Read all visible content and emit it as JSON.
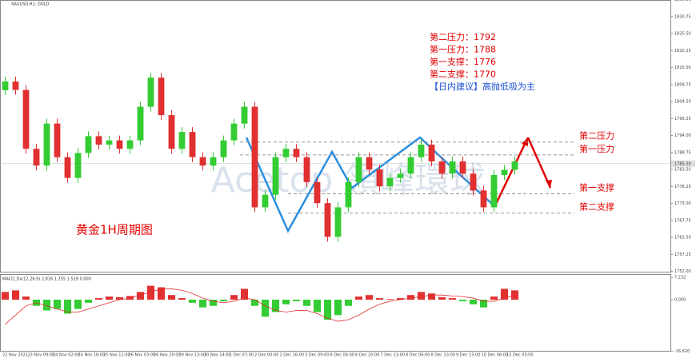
{
  "chart_data": {
    "type": "candlestick",
    "title": "XAUUSD,H1: GOLD",
    "subtitle": "黄金1H周期图",
    "watermark": "Acetop 領峰環球",
    "annotations": [
      "第二压力：1792",
      "第一压力：1788",
      "第一支撑：1776",
      "第二支撑：1770",
      "【日内建议】高抛低吸为主"
    ],
    "levels": [
      {
        "name": "第二压力",
        "value": 1792
      },
      {
        "name": "第一压力",
        "value": 1788
      },
      {
        "name": "第一支撑",
        "value": 1776
      },
      {
        "name": "第二支撑",
        "value": 1770
      }
    ],
    "last_price": {
      "value": 1785.3,
      "label": "1785.30"
    },
    "ylim": [
      1751.9,
      1835.9
    ],
    "yticks": [
      {
        "value": 1836,
        "label": "1836.00"
      },
      {
        "value": 1830.75,
        "label": "1830.75"
      },
      {
        "value": 1825.5,
        "label": "1825.50"
      },
      {
        "value": 1820.25,
        "label": "1820.25"
      },
      {
        "value": 1815,
        "label": "1815.00"
      },
      {
        "value": 1809.75,
        "label": "1809.75"
      },
      {
        "value": 1804.5,
        "label": "1804.50"
      },
      {
        "value": 1799.25,
        "label": "1799.25"
      },
      {
        "value": 1794,
        "label": "1794.00"
      },
      {
        "value": 1788.75,
        "label": "1788.75"
      },
      {
        "value": 1783.5,
        "label": "1783.50"
      },
      {
        "value": 1778.25,
        "label": "1778.25"
      },
      {
        "value": 1773,
        "label": "1773.00"
      },
      {
        "value": 1767.75,
        "label": "1767.75"
      },
      {
        "value": 1762.5,
        "label": "1762.50"
      },
      {
        "value": 1757.25,
        "label": "1757.25"
      },
      {
        "value": 1752,
        "label": "1752.00"
      }
    ],
    "time_labels": [
      "22 Nov 2021",
      "23 Nov 09:00",
      "24 Nov 02:00",
      "24 Nov 18:00",
      "25 Nov 11:00",
      "26 Nov 03:00",
      "26 Nov 20:00",
      "29 Nov 13:00",
      "30 Nov 14:00",
      "1 Dec 07:00",
      "2 Dec 00:00",
      "2 Dec 16:00",
      "3 Dec 09:00",
      "6 Dec 04:00",
      "6 Dec 20:00",
      "7 Dec 13:00",
      "8 Dec 06:00",
      "8 Dec 23:00",
      "9 Dec 15:00",
      "10 Dec 08:00",
      "13 Dec 03:00"
    ],
    "up_color": "#33cc33",
    "down_color": "#e03030",
    "open": [
      1808.0,
      1810.7,
      1808.1,
      1789.9,
      1784.7,
      1797.7,
      1787.3,
      1780.9,
      1788.6,
      1793.8,
      1791.2,
      1792.5,
      1789.9,
      1792.5,
      1802.9,
      1811.9,
      1800.3,
      1789.9,
      1795.1,
      1787.3,
      1784.7,
      1787.3,
      1792.5,
      1797.7,
      1802.9,
      1771.8,
      1775.7,
      1787.3,
      1789.9,
      1787.3,
      1779.6,
      1773.1,
      1762.7,
      1771.8,
      1779.6,
      1787.3,
      1783.5,
      1778.3,
      1780.9,
      1782.2,
      1787.3,
      1791.2,
      1786.0,
      1782.2,
      1786.0,
      1782.2,
      1777.0,
      1771.8,
      1781.8,
      1783.4
    ],
    "high": [
      1812.2,
      1812.2,
      1809.6,
      1791.4,
      1799.2,
      1799.2,
      1788.8,
      1790.1,
      1795.3,
      1795.3,
      1794.0,
      1794.0,
      1794.0,
      1804.4,
      1813.4,
      1813.4,
      1801.8,
      1796.6,
      1796.6,
      1788.8,
      1788.8,
      1794.0,
      1799.2,
      1804.4,
      1804.4,
      1777.2,
      1788.8,
      1791.4,
      1791.4,
      1788.8,
      1781.1,
      1774.6,
      1773.3,
      1781.1,
      1788.8,
      1788.8,
      1785.0,
      1782.4,
      1783.7,
      1788.8,
      1792.7,
      1792.7,
      1787.5,
      1787.5,
      1787.5,
      1783.7,
      1778.5,
      1783.3,
      1784.9,
      1787.5
    ],
    "low": [
      1806.5,
      1806.6,
      1788.4,
      1783.2,
      1783.2,
      1785.8,
      1779.4,
      1779.4,
      1787.1,
      1789.7,
      1789.7,
      1788.4,
      1788.4,
      1791.0,
      1801.4,
      1798.8,
      1788.4,
      1788.4,
      1785.8,
      1783.2,
      1783.2,
      1785.8,
      1791.0,
      1796.2,
      1770.3,
      1770.3,
      1774.2,
      1785.8,
      1785.8,
      1778.1,
      1771.6,
      1761.2,
      1761.2,
      1770.3,
      1778.1,
      1782.0,
      1776.8,
      1776.8,
      1779.4,
      1780.7,
      1785.8,
      1784.5,
      1780.7,
      1780.7,
      1780.7,
      1775.5,
      1770.3,
      1770.3,
      1780.3,
      1781.9
    ],
    "close": [
      1810.7,
      1808.1,
      1789.9,
      1784.7,
      1797.7,
      1787.3,
      1780.9,
      1788.6,
      1793.8,
      1791.2,
      1792.5,
      1789.9,
      1792.5,
      1802.9,
      1811.9,
      1800.3,
      1789.9,
      1795.1,
      1787.3,
      1784.7,
      1787.3,
      1792.5,
      1797.7,
      1802.9,
      1771.8,
      1775.7,
      1787.3,
      1789.9,
      1787.3,
      1779.6,
      1773.1,
      1762.7,
      1771.8,
      1779.6,
      1787.3,
      1783.5,
      1778.3,
      1780.9,
      1782.2,
      1787.3,
      1791.2,
      1786.0,
      1782.2,
      1786.0,
      1782.2,
      1777.0,
      1771.8,
      1781.8,
      1783.4,
      1786.0
    ],
    "macd": {
      "title": "MACD_Dx(12,26,9) 2.816 1.255 1.519 0.000",
      "ylim": [
        -16.8,
        8.27
      ],
      "yticks": [
        {
          "value": 7.232,
          "label": "7.232"
        },
        {
          "value": 0,
          "label": "0.000"
        },
        {
          "value": -16.62,
          "label": "-16.620"
        }
      ],
      "histogram": [
        2.5,
        3.0,
        1.0,
        -2.0,
        -3.5,
        -3.0,
        -4.5,
        -3.0,
        -1.0,
        0.5,
        1.0,
        0.8,
        1.2,
        2.5,
        4.5,
        4.0,
        1.5,
        0.5,
        -1.0,
        -2.5,
        -2.0,
        -0.5,
        1.5,
        3.5,
        -2.0,
        -5.5,
        -4.0,
        -1.5,
        -0.5,
        -2.0,
        -4.0,
        -6.5,
        -5.0,
        -2.0,
        1.0,
        1.5,
        0.5,
        0.2,
        0.5,
        1.5,
        2.5,
        2.0,
        0.8,
        0.5,
        -0.5,
        -1.5,
        -2.5,
        1.0,
        3.5,
        3.0
      ],
      "signal": [
        -8,
        -5,
        -2,
        -1,
        -2,
        -3,
        -4,
        -4,
        -3,
        -2,
        -1,
        0,
        0.5,
        1.5,
        2.5,
        3.5,
        3.5,
        3,
        2,
        0.5,
        -0.5,
        -1,
        -0.5,
        0.5,
        0,
        -2,
        -3.5,
        -4,
        -3.5,
        -3.5,
        -4.5,
        -6,
        -7,
        -6.5,
        -5,
        -3,
        -1.5,
        -0.5,
        0,
        0.5,
        1,
        1.5,
        1.5,
        1.2,
        1,
        0.5,
        -0.5,
        -0.5,
        0.5,
        1.5
      ],
      "signal_color": "#e03030"
    }
  }
}
